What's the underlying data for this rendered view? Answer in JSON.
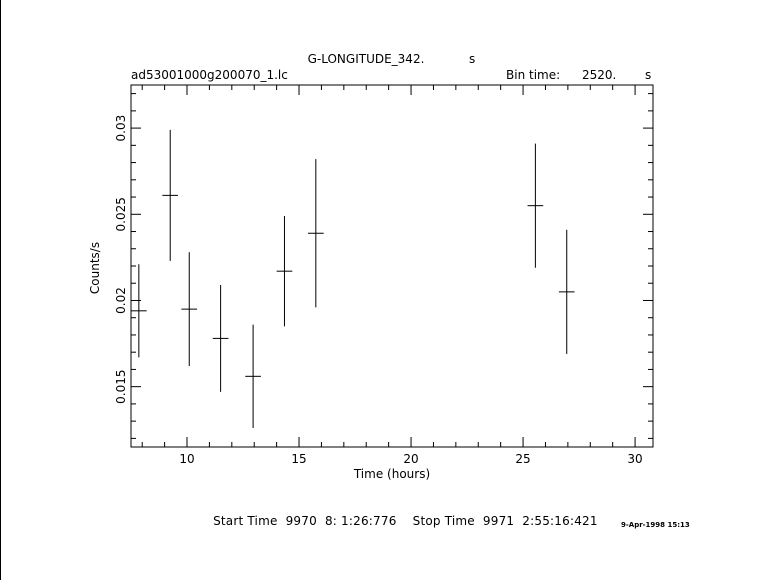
{
  "chart_data": {
    "type": "scatter",
    "title": "G-LONGITUDE_342.",
    "title_unit": "s",
    "file_label": "ad53001000g200070_1.lc",
    "bin_time_label": "Bin time:",
    "bin_time_value": "2520.",
    "bin_time_unit": "s",
    "xlabel": "Time (hours)",
    "ylabel": "Counts/s",
    "xlim": [
      7.5,
      30.8
    ],
    "ylim": [
      0.0115,
      0.0325
    ],
    "x_ticks": [
      10,
      15,
      20,
      25,
      30
    ],
    "x_tick_labels": [
      "10",
      "15",
      "20",
      "25",
      "30"
    ],
    "y_ticks": [
      0.015,
      0.02,
      0.025,
      0.03
    ],
    "y_tick_labels": [
      "0.015",
      "0.02",
      "0.025",
      "0.03"
    ],
    "grid": false,
    "x_halfwidth": 0.35,
    "points": [
      {
        "x": 7.85,
        "y": 0.0194,
        "yerr": 0.0027
      },
      {
        "x": 9.25,
        "y": 0.0261,
        "yerr": 0.0038
      },
      {
        "x": 10.1,
        "y": 0.0195,
        "yerr": 0.0033
      },
      {
        "x": 11.5,
        "y": 0.0178,
        "yerr": 0.0031
      },
      {
        "x": 12.95,
        "y": 0.0156,
        "yerr": 0.003
      },
      {
        "x": 14.35,
        "y": 0.0217,
        "yerr": 0.0032
      },
      {
        "x": 15.75,
        "y": 0.0239,
        "yerr": 0.0043
      },
      {
        "x": 25.55,
        "y": 0.0255,
        "yerr": 0.0036
      },
      {
        "x": 26.95,
        "y": 0.0205,
        "yerr": 0.0036
      }
    ]
  },
  "footer": {
    "start_label": "Start Time",
    "start_value": "9970  8: 1:26:776",
    "stop_label": "Stop Time",
    "stop_value": "9971  2:55:16:421"
  },
  "timestamp": "9-Apr-1998 15:13"
}
